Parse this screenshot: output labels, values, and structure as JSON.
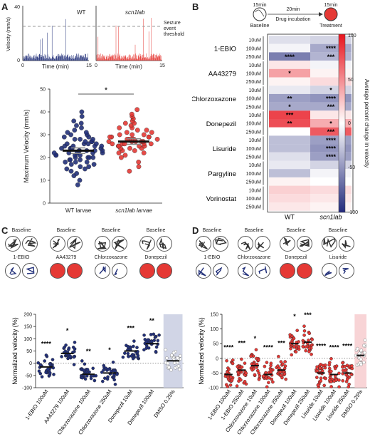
{
  "panels": {
    "A": {
      "letter": "A",
      "trace_wt_label": "WT",
      "trace_mut_label": "scn1lab",
      "trace_ylabel": "Velocity (mm/s)",
      "trace_xlabel": "Time (min)",
      "trace_x0": "0",
      "trace_x1": "15",
      "trace_y0": "0",
      "trace_y1": "40",
      "threshold_label": "Seizure event threshold",
      "threshold_value": 25,
      "sig": "*",
      "colors": {
        "wt": "#22307a",
        "mut": "#e53935"
      },
      "chart_data": {
        "type": "scatter",
        "ylabel": "Maximum Velocity (mm/s)",
        "categories": [
          "WT larvae",
          "scn1lab larvae"
        ],
        "ylim": [
          0,
          50
        ],
        "yticks": [
          0,
          10,
          20,
          30,
          40,
          50
        ],
        "series": [
          {
            "name": "WT larvae",
            "mean": 23,
            "points": [
              8,
              10,
              12,
              13,
              14,
              15,
              15,
              16,
              16,
              17,
              17,
              18,
              18,
              18,
              19,
              19,
              19,
              20,
              20,
              20,
              20,
              21,
              21,
              21,
              21,
              22,
              22,
              22,
              22,
              22,
              23,
              23,
              23,
              23,
              23,
              24,
              24,
              24,
              24,
              24,
              25,
              25,
              25,
              25,
              26,
              26,
              26,
              26,
              27,
              27,
              27,
              28,
              28,
              28,
              29,
              29,
              30,
              30,
              31,
              31,
              32,
              33,
              34,
              35,
              36,
              38,
              40
            ]
          },
          {
            "name": "scn1lab larvae",
            "mean": 27,
            "points": [
              14,
              16,
              18,
              20,
              21,
              22,
              22,
              23,
              23,
              24,
              24,
              24,
              25,
              25,
              25,
              25,
              26,
              26,
              26,
              26,
              26,
              27,
              27,
              27,
              27,
              27,
              28,
              28,
              28,
              28,
              28,
              29,
              29,
              29,
              29,
              30,
              30,
              30,
              31,
              31,
              32,
              32,
              33,
              33,
              34,
              35,
              35,
              36,
              37,
              38,
              39,
              41
            ]
          }
        ]
      }
    },
    "B": {
      "letter": "B",
      "baseline_time": "15min",
      "baseline_label": "Baseline",
      "incubation_time": "20min",
      "incubation_label": "Drug incubation",
      "treatment_time": "15min",
      "treatment_label": "Treatment",
      "colorbar_label": "Average percent change in velocity",
      "colorbar_ticks": [
        "100",
        "50",
        "0",
        "-50",
        "-100"
      ],
      "chart_data": {
        "type": "heatmap",
        "columns": [
          "WT",
          "scn1lab"
        ],
        "groups": [
          {
            "drug": "1-EBIO",
            "rows": [
              {
                "dose": "10uM",
                "values": [
                  -15,
                  -20
                ],
                "sig": [
                  "",
                  ""
                ]
              },
              {
                "dose": "100uM",
                "values": [
                  -5,
                  -40
                ],
                "sig": [
                  "",
                  "****"
                ]
              },
              {
                "dose": "250uM",
                "values": [
                  -60,
                  -35
                ],
                "sig": [
                  "****",
                  "***"
                ]
              }
            ]
          },
          {
            "drug": "AA43279",
            "rows": [
              {
                "dose": "10uM",
                "values": [
                  10,
                  -5
                ],
                "sig": [
                  "",
                  ""
                ]
              },
              {
                "dose": "100uM",
                "values": [
                  40,
                  5
                ],
                "sig": [
                  "*",
                  ""
                ]
              },
              {
                "dose": "250uM",
                "values": [
                  5,
                  15
                ],
                "sig": [
                  "",
                  ""
                ]
              }
            ]
          },
          {
            "drug": "Chlorzoxazone",
            "rows": [
              {
                "dose": "10uM",
                "values": [
                  -10,
                  -20
                ],
                "sig": [
                  "",
                  "*"
                ]
              },
              {
                "dose": "100uM",
                "values": [
                  -45,
                  -50
                ],
                "sig": [
                  "**",
                  "****"
                ]
              },
              {
                "dose": "250uM",
                "values": [
                  -40,
                  -40
                ],
                "sig": [
                  "*",
                  "***"
                ]
              }
            ]
          },
          {
            "drug": "Donepezil",
            "rows": [
              {
                "dose": "10uM",
                "values": [
                  80,
                  10
                ],
                "sig": [
                  "***",
                  ""
                ]
              },
              {
                "dose": "100uM",
                "values": [
                  75,
                  35
                ],
                "sig": [
                  "**",
                  "*"
                ]
              },
              {
                "dose": "250uM",
                "values": [
                  0,
                  70
                ],
                "sig": [
                  "",
                  "***"
                ]
              }
            ]
          },
          {
            "drug": "Lisuride",
            "rows": [
              {
                "dose": "10uM",
                "values": [
                  -30,
                  -45
                ],
                "sig": [
                  "",
                  "****"
                ]
              },
              {
                "dose": "100uM",
                "values": [
                  -30,
                  -50
                ],
                "sig": [
                  "",
                  "****"
                ]
              },
              {
                "dose": "250uM",
                "values": [
                  -15,
                  -45
                ],
                "sig": [
                  "",
                  "****"
                ]
              }
            ]
          },
          {
            "drug": "Pargyline",
            "rows": [
              {
                "dose": "10uM",
                "values": [
                  -10,
                  -20
                ],
                "sig": [
                  "",
                  ""
                ]
              },
              {
                "dose": "100uM",
                "values": [
                  -30,
                  -5
                ],
                "sig": [
                  "",
                  ""
                ]
              },
              {
                "dose": "250uM",
                "values": [
                  5,
                  0
                ],
                "sig": [
                  "",
                  ""
                ]
              }
            ]
          },
          {
            "drug": "Vorinostat",
            "rows": [
              {
                "dose": "10uM",
                "values": [
                  20,
                  15
                ],
                "sig": [
                  "",
                  ""
                ]
              },
              {
                "dose": "100uM",
                "values": [
                  15,
                  10
                ],
                "sig": [
                  "",
                  ""
                ]
              },
              {
                "dose": "250uM",
                "values": [
                  10,
                  5
                ],
                "sig": [
                  "",
                  ""
                ]
              }
            ]
          }
        ]
      }
    },
    "C": {
      "letter": "C",
      "baseline_labels": [
        "Baseline",
        "Baseline",
        "Baseline",
        "Baseline"
      ],
      "drug_labels": [
        "1-EBIO",
        "AA43279",
        "Chlorzoxazone",
        "Donepezil"
      ],
      "track_colors": [
        "#22307a",
        "#e53935",
        "#22307a",
        "#e53935"
      ],
      "chart_data": {
        "type": "scatter",
        "ylabel": "Normalized velocity (%)",
        "ylim": [
          -100,
          200
        ],
        "yticks": [
          -100,
          -50,
          0,
          50,
          100,
          150,
          200
        ],
        "categories": [
          "1-EBIO 100uM",
          "AA43279 100uM",
          "Chlorzoxazone 100uM",
          "Chlorzoxazone 250uM",
          "Donepezil 10uM",
          "Donepezil 100uM",
          "DMSO 0.25%"
        ],
        "means": [
          -15,
          40,
          -45,
          -40,
          50,
          80,
          10
        ],
        "sig": [
          "****",
          "*",
          "**",
          "*",
          "***",
          "**",
          ""
        ],
        "marker": "#22307a",
        "control_band": "#c5cae0"
      }
    },
    "D": {
      "letter": "D",
      "baseline_labels": [
        "Baseline",
        "Baseline",
        "Baseline",
        "Baseline"
      ],
      "drug_labels": [
        "1-EBIO",
        "Chlorzoxazone",
        "Donepezil",
        "Lisuride"
      ],
      "track_colors": [
        "#22307a",
        "#22307a",
        "#e53935",
        "#22307a"
      ],
      "chart_data": {
        "type": "scatter",
        "ylabel": "Normalized velocity (%)",
        "ylim": [
          -100,
          150
        ],
        "yticks": [
          -100,
          -50,
          0,
          50,
          100,
          150
        ],
        "categories": [
          "1-EBIO 100uM",
          "1-EBIO 250uM",
          "Chlorzoxazone 10uM",
          "Chlorzoxazone 100uM",
          "Chlorzoxazone 250uM",
          "Donepezil 100uM",
          "Donepezil 250uM",
          "Lisuride 10uM",
          "Lisuride 100uM",
          "Lisuride 250uM",
          "DMSO 0.25%"
        ],
        "means": [
          -55,
          -40,
          -25,
          -55,
          -40,
          50,
          55,
          -50,
          -55,
          -50,
          10
        ],
        "sig": [
          "****",
          "***",
          "*",
          "****",
          "***",
          "*",
          "***",
          "****",
          "****",
          "****",
          ""
        ],
        "marker": "#e53935",
        "control_band": "#f6c9cc"
      }
    }
  }
}
